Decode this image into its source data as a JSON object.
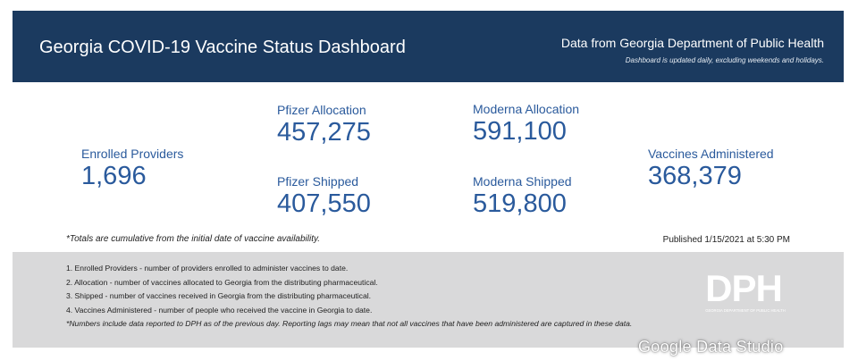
{
  "header": {
    "title": "Georgia COVID-19 Vaccine Status Dashboard",
    "source": "Data from Georgia Department of Public Health",
    "update_note": "Dashboard is updated daily, excluding weekends and holidays."
  },
  "stats": {
    "enrolled_providers": {
      "label": "Enrolled Providers",
      "value": "1,696"
    },
    "pfizer_allocation": {
      "label": "Pfizer Allocation",
      "value": "457,275"
    },
    "pfizer_shipped": {
      "label": "Pfizer Shipped",
      "value": "407,550"
    },
    "moderna_allocation": {
      "label": "Moderna Allocation",
      "value": "591,100"
    },
    "moderna_shipped": {
      "label": "Moderna Shipped",
      "value": "519,800"
    },
    "vaccines_administered": {
      "label": "Vaccines Administered",
      "value": "368,379"
    }
  },
  "footer": {
    "totals_note": "*Totals are cumulative from the initial date of vaccine availability.",
    "published": "Published 1/15/2021 at 5:30 PM"
  },
  "definitions": [
    "1. Enrolled Providers - number of providers enrolled to administer vaccines to date.",
    "2. Allocation - number of vaccines allocated to Georgia from the distributing pharmaceutical.",
    "3. Shipped - number of vaccines received in Georgia from the distributing pharmaceutical.",
    "4. Vaccines Administered - number of people who received the vaccine in Georgia to date.",
    "*Numbers include data reported to DPH as of the previous day. Reporting lags may mean that not all vaccines that have been administered are captured in these data."
  ],
  "logo": {
    "text": "DPH",
    "subtitle": "GEORGIA DEPARTMENT OF PUBLIC HEALTH"
  },
  "watermark": "Google Data Studio",
  "colors": {
    "header_bg": "#1b3a5f",
    "stat_blue": "#2a5a9c",
    "notes_bg": "#d9d9da"
  }
}
